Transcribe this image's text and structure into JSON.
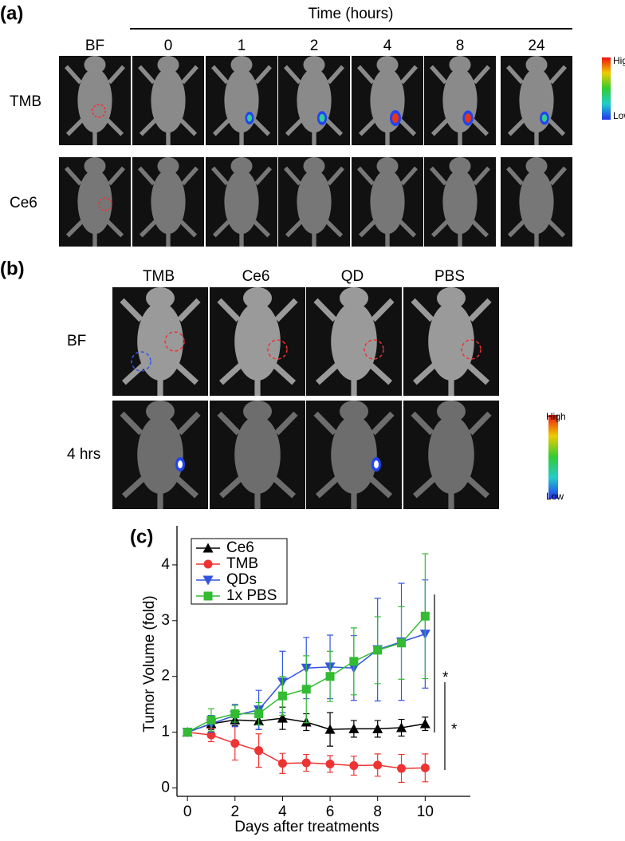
{
  "panel_a": {
    "label": "(a)",
    "time_label": "Time (hours)",
    "columns": [
      "BF",
      "0",
      "1",
      "2",
      "4",
      "8",
      "24"
    ],
    "rows": [
      "TMB",
      "Ce6"
    ],
    "colorbar": {
      "high": "High",
      "low": "Low"
    }
  },
  "panel_b": {
    "label": "(b)",
    "columns": [
      "TMB",
      "Ce6",
      "QD",
      "PBS"
    ],
    "rows": [
      "BF",
      "4 hrs"
    ],
    "colorbar": {
      "high": "High",
      "low": "Low"
    }
  },
  "chart_data": {
    "type": "line",
    "panel_label": "(c)",
    "x_label": "Days after treatments",
    "y_label": "Tumor Volume (fold)",
    "x": [
      0,
      1,
      2,
      3,
      4,
      5,
      6,
      7,
      8,
      9,
      10
    ],
    "series": [
      {
        "name": "Ce6",
        "color": "#000000",
        "marker": "triangle-up",
        "values": [
          1.0,
          1.15,
          1.22,
          1.2,
          1.25,
          1.18,
          1.05,
          1.06,
          1.06,
          1.08,
          1.15
        ],
        "errors": [
          0.03,
          0.1,
          0.1,
          0.15,
          0.2,
          0.15,
          0.3,
          0.15,
          0.15,
          0.15,
          0.12
        ]
      },
      {
        "name": "TMB",
        "color": "#ee3333",
        "marker": "circle",
        "values": [
          1.0,
          0.95,
          0.8,
          0.67,
          0.44,
          0.45,
          0.43,
          0.4,
          0.41,
          0.35,
          0.36
        ],
        "errors": [
          0.03,
          0.12,
          0.3,
          0.3,
          0.18,
          0.15,
          0.15,
          0.17,
          0.2,
          0.25,
          0.25
        ]
      },
      {
        "name": "QDs",
        "color": "#3355dd",
        "marker": "triangle-down",
        "values": [
          1.0,
          1.15,
          1.3,
          1.4,
          1.9,
          2.15,
          2.17,
          2.15,
          2.48,
          2.62,
          2.76
        ],
        "errors": [
          0.03,
          0.15,
          0.2,
          0.35,
          0.55,
          0.55,
          0.57,
          0.58,
          0.92,
          1.05,
          0.97
        ]
      },
      {
        "name": "1x PBS",
        "color": "#33bb33",
        "marker": "square",
        "values": [
          1.0,
          1.22,
          1.33,
          1.33,
          1.65,
          1.77,
          2.0,
          2.27,
          2.47,
          2.6,
          3.08
        ],
        "errors": [
          0.03,
          0.2,
          0.15,
          0.2,
          0.35,
          0.6,
          0.45,
          0.6,
          0.6,
          0.65,
          1.12
        ]
      }
    ],
    "xlim": [
      -0.44,
      11.9
    ],
    "xticks": [
      0,
      2,
      4,
      6,
      8,
      10
    ],
    "ylim": [
      -0.15,
      4.7
    ],
    "yticks": [
      0,
      1,
      2,
      3,
      4
    ],
    "legend": "upper left",
    "annotations": [
      "*",
      "*"
    ]
  }
}
